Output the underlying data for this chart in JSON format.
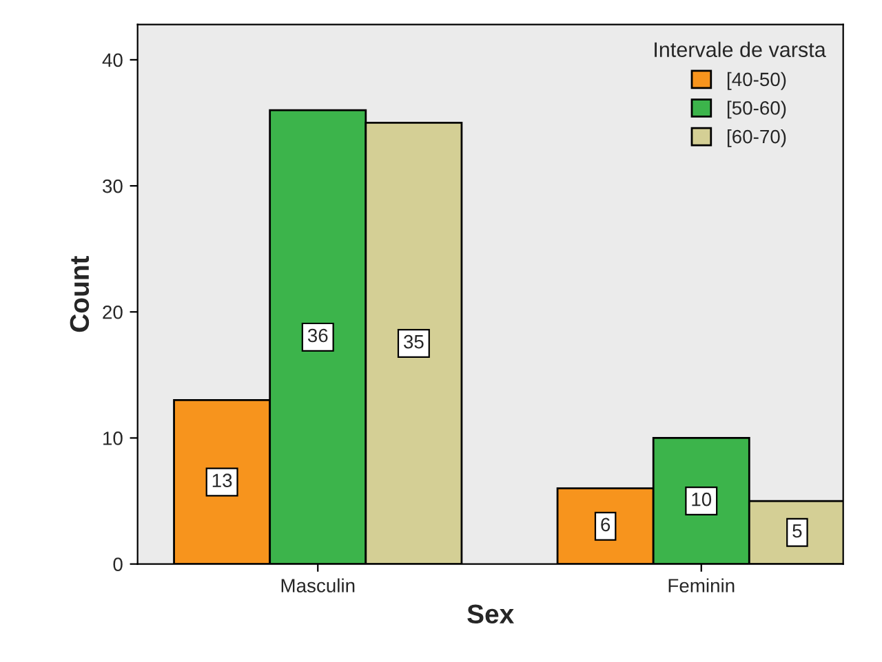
{
  "chart_data": {
    "type": "bar",
    "xlabel": "Sex",
    "ylabel": "Count",
    "legend_title": "Intervale de varsta",
    "categories": [
      "Masculin",
      "Feminin"
    ],
    "series": [
      {
        "name": "[40-50)",
        "color": "#f7941d",
        "values": [
          13,
          6
        ]
      },
      {
        "name": "[50-60)",
        "color": "#3cb44b",
        "values": [
          36,
          10
        ]
      },
      {
        "name": "[60-70)",
        "color": "#d4cf95",
        "values": [
          35,
          5
        ]
      }
    ],
    "ylim": [
      0,
      42.8
    ],
    "yticks": [
      0,
      10,
      20,
      30,
      40
    ],
    "grid": false,
    "legend": "top right",
    "data_labels": true
  }
}
